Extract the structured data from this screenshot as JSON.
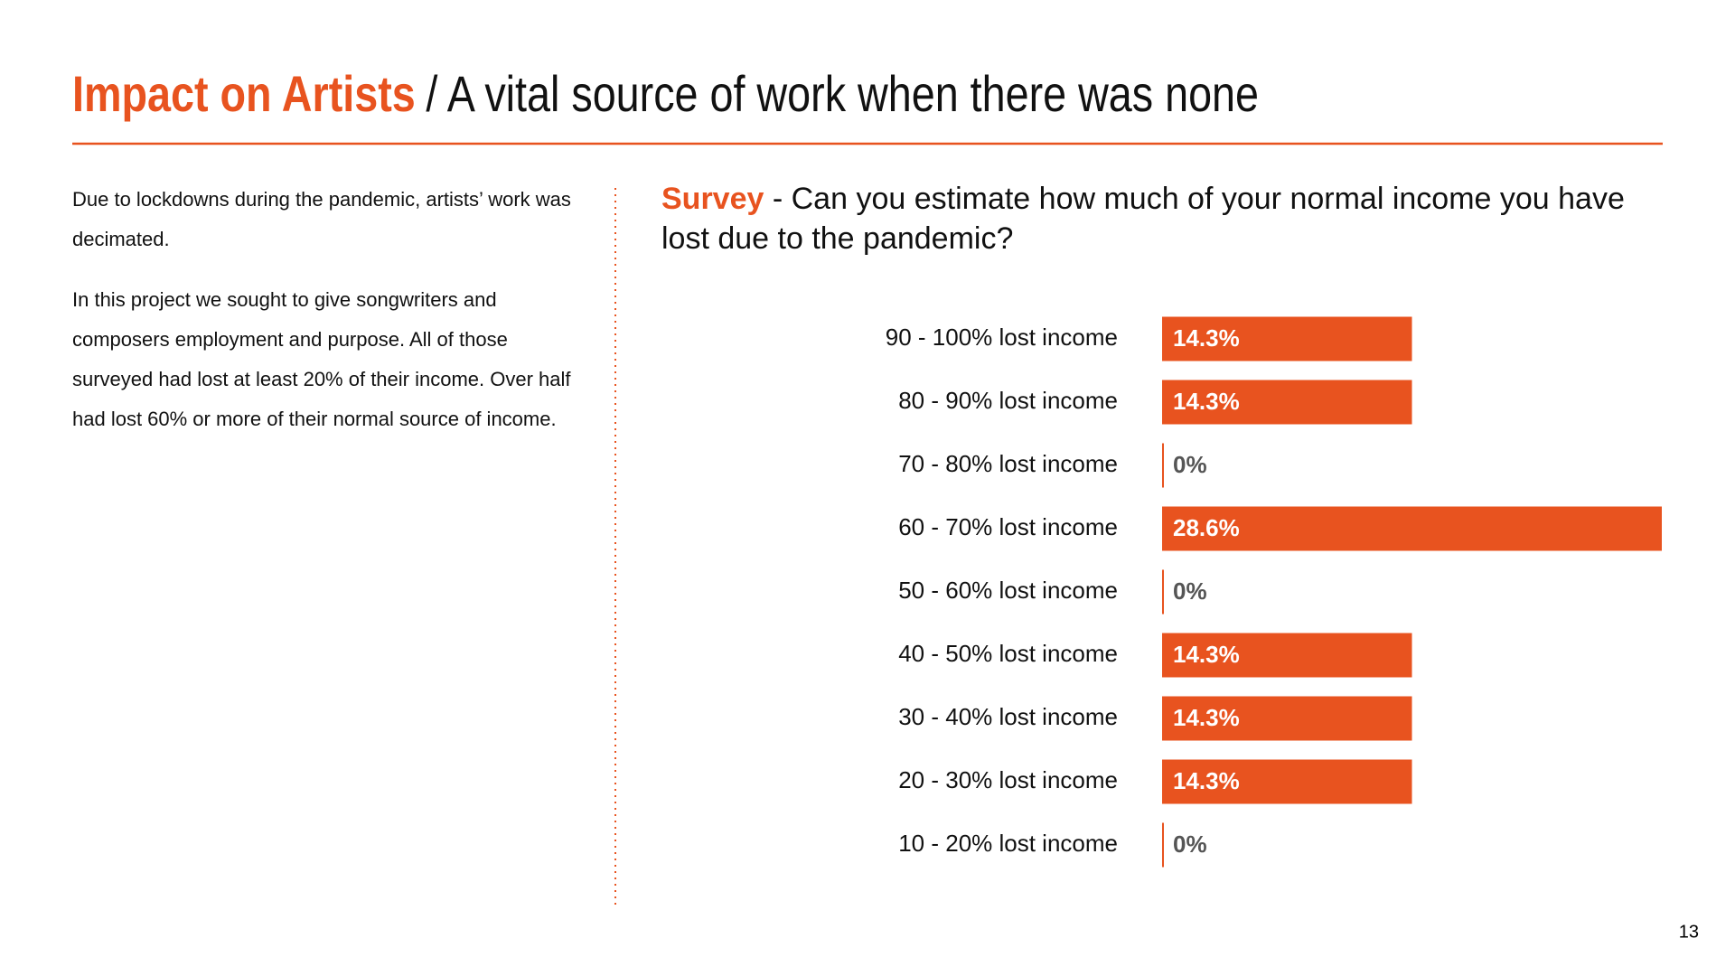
{
  "header": {
    "highlight": "Impact on Artists",
    "title": "/ A vital source of work when there was none"
  },
  "body": {
    "paragraphs": [
      "Due to lockdowns during the pandemic, artists’ work was decimated.",
      "In this project we sought to give songwriters and composers employment and purpose. All of those surveyed had lost at least 20% of their income. Over half had lost 60% or more of their normal source of income."
    ]
  },
  "chart_data": {
    "type": "bar",
    "orientation": "horizontal",
    "label": "Survey",
    "title": "- Can you estimate how much of your normal income you have lost due to the pandemic?",
    "categories": [
      "90 - 100% lost income",
      "80 - 90% lost income",
      "70 - 80% lost income",
      "60 - 70% lost income",
      "50 - 60% lost income",
      "40 - 50% lost income",
      "30 - 40% lost income",
      "20 - 30% lost income",
      "10 - 20% lost income"
    ],
    "values": [
      14.3,
      14.3,
      0,
      28.6,
      0,
      14.3,
      14.3,
      14.3,
      0
    ],
    "value_labels": [
      "14.3%",
      "14.3%",
      "0%",
      "28.6%",
      "0%",
      "14.3%",
      "14.3%",
      "14.3%",
      "0%"
    ],
    "color": "#e8531f"
  },
  "page_number": "13"
}
